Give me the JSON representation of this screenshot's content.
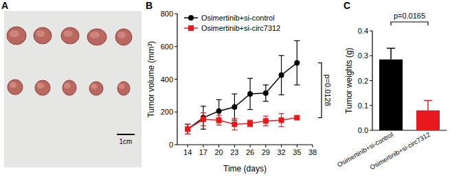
{
  "chart_data": [
    {
      "type": "image",
      "title": "A",
      "annotations": [
        "1cm"
      ]
    },
    {
      "type": "line",
      "title": "B",
      "x_label": "Time (days)",
      "y_label": "Tumor volume (mm³)",
      "x": [
        14,
        17,
        20,
        23,
        26,
        29,
        32,
        35
      ],
      "series": [
        {
          "name": "Osimertinib+si-control",
          "color": "#000000",
          "marker": "circle",
          "values": [
            95,
            165,
            205,
            230,
            310,
            315,
            425,
            500
          ],
          "errors": [
            30,
            70,
            70,
            80,
            95,
            50,
            120,
            135
          ]
        },
        {
          "name": "Osimertinib+si-circ7312",
          "color": "#e8191c",
          "marker": "square",
          "values": [
            95,
            155,
            150,
            125,
            130,
            145,
            150,
            165
          ],
          "errors": [
            30,
            40,
            30,
            35,
            20,
            30,
            40,
            10
          ]
        }
      ],
      "xlim": [
        12,
        38
      ],
      "xticks": [
        14,
        17,
        20,
        23,
        26,
        29,
        32,
        35,
        38
      ],
      "ylim": [
        0,
        800
      ],
      "yticks": [
        0,
        200,
        400,
        600,
        800
      ],
      "legend": "upper left",
      "annotations": [
        "p=0.0128"
      ]
    },
    {
      "type": "bar",
      "title": "C",
      "y_label": "Tumor weights (g)",
      "categories": [
        "Osimertinib+si-control",
        "Osimertinib+si-circ7312"
      ],
      "values": [
        0.285,
        0.08
      ],
      "errors": [
        0.045,
        0.04
      ],
      "colors": [
        "#000000",
        "#e8191c"
      ],
      "ylim": [
        0,
        0.4
      ],
      "yticks": [
        {
          "value": 0,
          "label": "0.0"
        },
        0.1,
        0.2,
        0.3,
        0.4
      ],
      "annotations": [
        "p=0.0165"
      ]
    }
  ]
}
